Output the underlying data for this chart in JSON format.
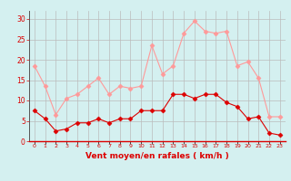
{
  "hours": [
    0,
    1,
    2,
    3,
    4,
    5,
    6,
    7,
    8,
    9,
    10,
    11,
    12,
    13,
    14,
    15,
    16,
    17,
    18,
    19,
    20,
    21,
    22,
    23
  ],
  "wind_avg": [
    7.5,
    5.5,
    2.5,
    3.0,
    4.5,
    4.5,
    5.5,
    4.5,
    5.5,
    5.5,
    7.5,
    7.5,
    7.5,
    11.5,
    11.5,
    10.5,
    11.5,
    11.5,
    9.5,
    8.5,
    5.5,
    6.0,
    2.0,
    1.5
  ],
  "wind_gust": [
    18.5,
    13.5,
    6.5,
    10.5,
    11.5,
    13.5,
    15.5,
    11.5,
    13.5,
    13.0,
    13.5,
    23.5,
    16.5,
    18.5,
    26.5,
    29.5,
    27.0,
    26.5,
    27.0,
    18.5,
    19.5,
    15.5,
    6.0,
    6.0
  ],
  "avg_color": "#dd0000",
  "gust_color": "#ff9999",
  "bg_color": "#d4f0f0",
  "grid_color": "#bbbbbb",
  "xlabel": "Vent moyen/en rafales ( km/h )",
  "xlabel_color": "#dd0000",
  "yticks": [
    0,
    5,
    10,
    15,
    20,
    25,
    30
  ],
  "ylim": [
    0,
    32
  ],
  "xlim": [
    -0.5,
    23.5
  ],
  "marker": "D",
  "markersize": 2.5
}
